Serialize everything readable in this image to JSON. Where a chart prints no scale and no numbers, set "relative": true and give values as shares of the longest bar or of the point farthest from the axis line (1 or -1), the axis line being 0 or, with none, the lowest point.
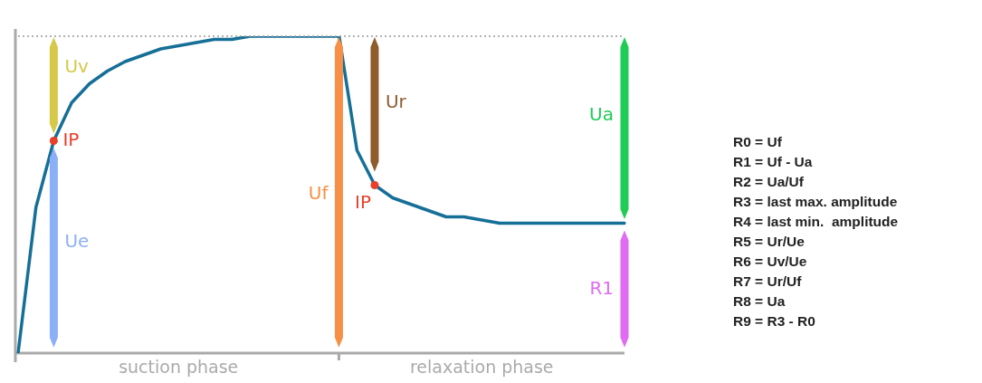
{
  "chart_data": [
    {
      "type": "line",
      "relative": true,
      "grid": false,
      "legend": false,
      "categories": [
        null,
        null,
        null,
        null,
        null,
        null,
        null,
        null,
        null,
        null,
        null,
        null,
        null,
        null,
        null,
        null,
        null,
        null,
        null,
        null,
        null,
        null,
        null,
        null,
        null,
        null,
        null,
        null,
        null,
        null,
        null,
        null,
        null,
        null,
        null
      ],
      "series": [
        {
          "type": "line",
          "color": "#166f97",
          "values": [
            0,
            0.46,
            0.67,
            0.79,
            0.85,
            0.89,
            0.92,
            0.94,
            0.96,
            0.97,
            0.98,
            0.99,
            0.99,
            1,
            1,
            1,
            1,
            1,
            1,
            0.64,
            0.53,
            0.49,
            0.47,
            0.45,
            0.43,
            0.43,
            0.42,
            0.41,
            0.41,
            0.41,
            0.41,
            0.41,
            0.41,
            0.41,
            0.41
          ]
        }
      ],
      "annotations": [
        "Uv",
        "Ue",
        "Uf",
        "Ur",
        "Ua",
        "R1",
        "IP",
        "IP",
        "suction phase",
        "relaxation phase"
      ]
    },
    {
      "type": "other",
      "annotations": [
        "R0 = Uf",
        "R1 = Uf - Ua",
        "R2 = Ua/Uf",
        "R3 = last max. amplitude",
        "R4 = last min.  amplitude",
        "R5 = Ur/Ue",
        "R6 = Uv/Ue",
        "R7 = Ur/Uf",
        "R8 = Ua",
        "R9 = R3 - R0"
      ]
    }
  ]
}
